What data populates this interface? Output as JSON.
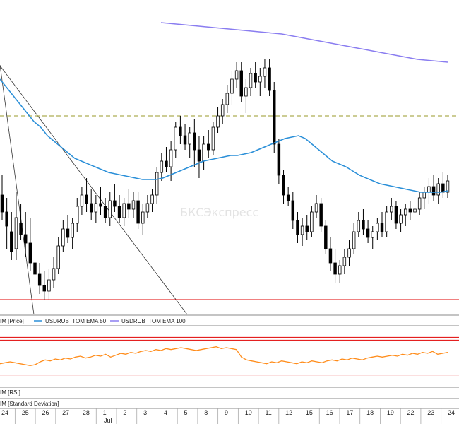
{
  "chart_data": {
    "type": "candlestick",
    "price_series_label": "IM [Price]",
    "indicator_legend": [
      {
        "name": "USDRUB_TOM EMA 50",
        "color": "#2a8fd8"
      },
      {
        "name": "USDRUB_TOM EMA 100",
        "color": "#8a7df0"
      }
    ],
    "rsi_label": "IM [RSI]",
    "stddev_label": "IM [Standard Deviation]",
    "watermark": "БКСЭкспресс",
    "month_label": "Jul",
    "x_ticks": [
      "24",
      "25",
      "26",
      "27",
      "28",
      "1",
      "2",
      "3",
      "4",
      "5",
      "8",
      "9",
      "10",
      "11",
      "12",
      "15",
      "16",
      "17",
      "18",
      "19",
      "22",
      "23",
      "24"
    ],
    "colors": {
      "up_candle": "#ffffff",
      "down_candle": "#000000",
      "ema50": "#2a8fd8",
      "ema100": "#8a7df0",
      "rsi": "#ff8c1a",
      "level_lines": "#e00000",
      "dashed_level": "#9a9a2a"
    },
    "candles": [
      {
        "o": 61,
        "h": 68,
        "l": 52,
        "c": 55
      },
      {
        "o": 55,
        "h": 60,
        "l": 42,
        "c": 50
      },
      {
        "o": 48,
        "h": 55,
        "l": 38,
        "c": 41
      },
      {
        "o": 42,
        "h": 62,
        "l": 38,
        "c": 53
      },
      {
        "o": 51,
        "h": 58,
        "l": 45,
        "c": 47
      },
      {
        "o": 47,
        "h": 55,
        "l": 39,
        "c": 44
      },
      {
        "o": 44,
        "h": 53,
        "l": 34,
        "c": 37
      },
      {
        "o": 37,
        "h": 45,
        "l": 29,
        "c": 33
      },
      {
        "o": 33,
        "h": 37,
        "l": 26,
        "c": 29
      },
      {
        "o": 29,
        "h": 34,
        "l": 24,
        "c": 27
      },
      {
        "o": 27,
        "h": 35,
        "l": 24,
        "c": 31
      },
      {
        "o": 31,
        "h": 39,
        "l": 28,
        "c": 35
      },
      {
        "o": 35,
        "h": 46,
        "l": 33,
        "c": 43
      },
      {
        "o": 43,
        "h": 52,
        "l": 41,
        "c": 49
      },
      {
        "o": 49,
        "h": 54,
        "l": 44,
        "c": 46
      },
      {
        "o": 46,
        "h": 53,
        "l": 42,
        "c": 51
      },
      {
        "o": 51,
        "h": 60,
        "l": 48,
        "c": 57
      },
      {
        "o": 57,
        "h": 64,
        "l": 54,
        "c": 61
      },
      {
        "o": 61,
        "h": 67,
        "l": 55,
        "c": 58
      },
      {
        "o": 58,
        "h": 63,
        "l": 52,
        "c": 55
      },
      {
        "o": 55,
        "h": 61,
        "l": 51,
        "c": 58
      },
      {
        "o": 58,
        "h": 64,
        "l": 54,
        "c": 57
      },
      {
        "o": 57,
        "h": 60,
        "l": 51,
        "c": 53
      },
      {
        "o": 53,
        "h": 62,
        "l": 50,
        "c": 59
      },
      {
        "o": 59,
        "h": 65,
        "l": 55,
        "c": 57
      },
      {
        "o": 57,
        "h": 61,
        "l": 51,
        "c": 53
      },
      {
        "o": 53,
        "h": 60,
        "l": 50,
        "c": 58
      },
      {
        "o": 58,
        "h": 63,
        "l": 53,
        "c": 56
      },
      {
        "o": 56,
        "h": 62,
        "l": 53,
        "c": 59
      },
      {
        "o": 59,
        "h": 62,
        "l": 49,
        "c": 51
      },
      {
        "o": 51,
        "h": 58,
        "l": 47,
        "c": 55
      },
      {
        "o": 55,
        "h": 61,
        "l": 53,
        "c": 58
      },
      {
        "o": 58,
        "h": 63,
        "l": 55,
        "c": 61
      },
      {
        "o": 61,
        "h": 71,
        "l": 58,
        "c": 69
      },
      {
        "o": 69,
        "h": 76,
        "l": 66,
        "c": 73
      },
      {
        "o": 73,
        "h": 78,
        "l": 69,
        "c": 71
      },
      {
        "o": 71,
        "h": 80,
        "l": 66,
        "c": 77
      },
      {
        "o": 77,
        "h": 87,
        "l": 74,
        "c": 85
      },
      {
        "o": 85,
        "h": 89,
        "l": 79,
        "c": 82
      },
      {
        "o": 82,
        "h": 86,
        "l": 77,
        "c": 79
      },
      {
        "o": 79,
        "h": 85,
        "l": 74,
        "c": 83
      },
      {
        "o": 83,
        "h": 88,
        "l": 71,
        "c": 77
      },
      {
        "o": 77,
        "h": 82,
        "l": 67,
        "c": 73
      },
      {
        "o": 73,
        "h": 82,
        "l": 70,
        "c": 79
      },
      {
        "o": 79,
        "h": 84,
        "l": 74,
        "c": 77
      },
      {
        "o": 77,
        "h": 87,
        "l": 75,
        "c": 85
      },
      {
        "o": 85,
        "h": 92,
        "l": 83,
        "c": 89
      },
      {
        "o": 89,
        "h": 95,
        "l": 86,
        "c": 93
      },
      {
        "o": 93,
        "h": 100,
        "l": 90,
        "c": 97
      },
      {
        "o": 97,
        "h": 105,
        "l": 93,
        "c": 102
      },
      {
        "o": 102,
        "h": 108,
        "l": 99,
        "c": 105
      },
      {
        "o": 105,
        "h": 108,
        "l": 94,
        "c": 96
      },
      {
        "o": 96,
        "h": 102,
        "l": 90,
        "c": 99
      },
      {
        "o": 99,
        "h": 106,
        "l": 96,
        "c": 104
      },
      {
        "o": 104,
        "h": 108,
        "l": 99,
        "c": 101
      },
      {
        "o": 101,
        "h": 106,
        "l": 96,
        "c": 103
      },
      {
        "o": 103,
        "h": 109,
        "l": 99,
        "c": 106
      },
      {
        "o": 106,
        "h": 109,
        "l": 96,
        "c": 98
      },
      {
        "o": 98,
        "h": 101,
        "l": 76,
        "c": 79
      },
      {
        "o": 79,
        "h": 81,
        "l": 65,
        "c": 68
      },
      {
        "o": 68,
        "h": 70,
        "l": 58,
        "c": 61
      },
      {
        "o": 61,
        "h": 64,
        "l": 57,
        "c": 59
      },
      {
        "o": 59,
        "h": 62,
        "l": 49,
        "c": 52
      },
      {
        "o": 52,
        "h": 55,
        "l": 44,
        "c": 47
      },
      {
        "o": 47,
        "h": 53,
        "l": 43,
        "c": 50
      },
      {
        "o": 50,
        "h": 54,
        "l": 45,
        "c": 48
      },
      {
        "o": 48,
        "h": 57,
        "l": 46,
        "c": 55
      },
      {
        "o": 55,
        "h": 61,
        "l": 53,
        "c": 58
      },
      {
        "o": 58,
        "h": 60,
        "l": 48,
        "c": 50
      },
      {
        "o": 50,
        "h": 52,
        "l": 40,
        "c": 42
      },
      {
        "o": 42,
        "h": 46,
        "l": 34,
        "c": 37
      },
      {
        "o": 37,
        "h": 42,
        "l": 30,
        "c": 33
      },
      {
        "o": 33,
        "h": 38,
        "l": 30,
        "c": 36
      },
      {
        "o": 36,
        "h": 42,
        "l": 33,
        "c": 39
      },
      {
        "o": 39,
        "h": 45,
        "l": 36,
        "c": 42
      },
      {
        "o": 42,
        "h": 51,
        "l": 40,
        "c": 48
      },
      {
        "o": 48,
        "h": 55,
        "l": 46,
        "c": 52
      },
      {
        "o": 52,
        "h": 56,
        "l": 47,
        "c": 49
      },
      {
        "o": 49,
        "h": 52,
        "l": 44,
        "c": 46
      },
      {
        "o": 46,
        "h": 50,
        "l": 42,
        "c": 48
      },
      {
        "o": 48,
        "h": 53,
        "l": 45,
        "c": 51
      },
      {
        "o": 51,
        "h": 55,
        "l": 46,
        "c": 48
      },
      {
        "o": 48,
        "h": 57,
        "l": 46,
        "c": 55
      },
      {
        "o": 55,
        "h": 60,
        "l": 52,
        "c": 57
      },
      {
        "o": 57,
        "h": 59,
        "l": 49,
        "c": 51
      },
      {
        "o": 51,
        "h": 56,
        "l": 48,
        "c": 54
      },
      {
        "o": 54,
        "h": 58,
        "l": 50,
        "c": 56
      },
      {
        "o": 56,
        "h": 59,
        "l": 52,
        "c": 55
      },
      {
        "o": 55,
        "h": 58,
        "l": 51,
        "c": 56
      },
      {
        "o": 56,
        "h": 62,
        "l": 54,
        "c": 60
      },
      {
        "o": 60,
        "h": 64,
        "l": 56,
        "c": 62
      },
      {
        "o": 62,
        "h": 67,
        "l": 58,
        "c": 64
      },
      {
        "o": 64,
        "h": 68,
        "l": 59,
        "c": 61
      },
      {
        "o": 61,
        "h": 67,
        "l": 58,
        "c": 65
      },
      {
        "o": 65,
        "h": 69,
        "l": 60,
        "c": 62
      },
      {
        "o": 62,
        "h": 68,
        "l": 60,
        "c": 66
      }
    ],
    "ema50": [
      102,
      99,
      96,
      93,
      90,
      87,
      85,
      82,
      80,
      78,
      76,
      74,
      73,
      72,
      71,
      70,
      69,
      68.5,
      68,
      67.5,
      67,
      66.5,
      66.5,
      66.5,
      67,
      68,
      69,
      70,
      71,
      72,
      73,
      73.5,
      74,
      74.5,
      75,
      75,
      75.5,
      76,
      77,
      78,
      79,
      80,
      81,
      81.5,
      82,
      81,
      79,
      77,
      75,
      73,
      72,
      71,
      69.5,
      68,
      67,
      66,
      65,
      64.5,
      64,
      63.5,
      63,
      62.5,
      62,
      62,
      62,
      62,
      62.5
    ],
    "ema100": [
      122,
      121.5,
      121,
      120.5,
      120,
      119.5,
      119,
      118.5,
      118,
      117,
      116,
      115,
      114,
      113,
      112,
      111,
      110,
      109,
      108.5,
      108
    ],
    "rsi": [
      42,
      43,
      44,
      43,
      42,
      41,
      40,
      41,
      44,
      46,
      45,
      47,
      46,
      48,
      47,
      49,
      50,
      48,
      49,
      51,
      50,
      52,
      49,
      51,
      53,
      52,
      54,
      53,
      55,
      56,
      55,
      57,
      56,
      58,
      57,
      58,
      59,
      58,
      57,
      56,
      57,
      58,
      59,
      60,
      58,
      59,
      58,
      57,
      49,
      46,
      45,
      44,
      43,
      42,
      44,
      43,
      45,
      44,
      43,
      42,
      44,
      43,
      45,
      44,
      43,
      45,
      46,
      45,
      47,
      46,
      48,
      47,
      46,
      48,
      49,
      50,
      49,
      50,
      51,
      50,
      52,
      51,
      53,
      52,
      54,
      53,
      55,
      52,
      53,
      54
    ],
    "price_levels": {
      "dashed": 89,
      "solid": 24
    },
    "rsi_levels": [
      70,
      30
    ]
  }
}
